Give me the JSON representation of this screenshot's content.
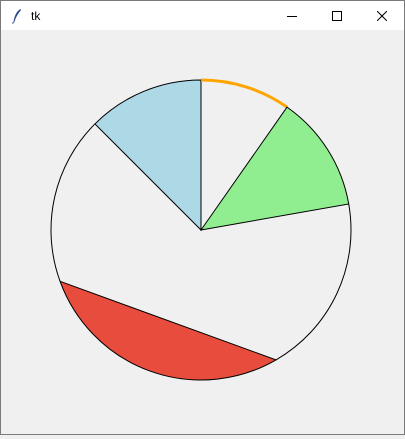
{
  "window": {
    "title": "tk"
  },
  "icons": {
    "app": "feather-icon",
    "minimize": "minimize-icon",
    "maximize": "maximize-icon",
    "close": "close-icon"
  },
  "canvas": {
    "background": "#f0f0f0",
    "outline_color": "#000000",
    "shapes": [
      {
        "kind": "arc",
        "style": "pieslice",
        "start_deg": 90,
        "extent_deg": 45,
        "fill": "#add8e6"
      },
      {
        "kind": "arc",
        "style": "arc",
        "start_deg": 55,
        "extent_deg": 35,
        "outline": "#ffa500"
      },
      {
        "kind": "arc",
        "style": "pieslice",
        "start_deg": 10,
        "extent_deg": 45,
        "fill": "#90ee90"
      },
      {
        "kind": "arc",
        "style": "chord",
        "start_deg": 200,
        "extent_deg": 100,
        "fill": "#e74c3c"
      },
      {
        "kind": "arc",
        "style": "arc",
        "start_deg": 135,
        "extent_deg": 65,
        "outline": "#000000"
      },
      {
        "kind": "arc",
        "style": "arc",
        "start_deg": -60,
        "extent_deg": 70,
        "outline": "#000000"
      }
    ]
  }
}
